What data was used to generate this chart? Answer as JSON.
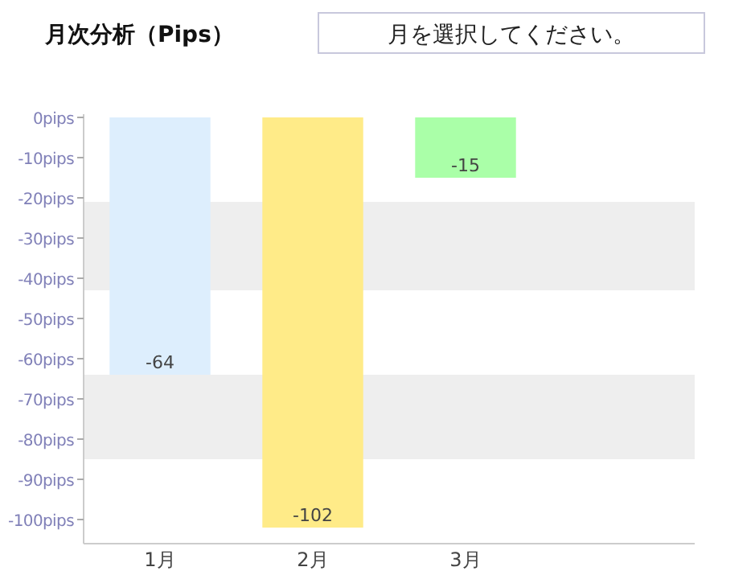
{
  "chart_data": {
    "type": "bar",
    "title": "月次分析（Pips）",
    "annotations": [
      "月を選択してください。"
    ],
    "categories": [
      "1月",
      "2月",
      "3月",
      null
    ],
    "values": [
      -64,
      -102,
      -15,
      null
    ],
    "colors": [
      "#ddeefd",
      "#ffeb88",
      "#aaffa8",
      null
    ],
    "data_labels": true,
    "ylim": [
      -106,
      0
    ],
    "yticks": [
      {
        "value": 0,
        "label": "0pips"
      },
      {
        "value": -10,
        "label": "-10pips"
      },
      {
        "value": -20,
        "label": "-20pips"
      },
      {
        "value": -30,
        "label": "-30pips"
      },
      {
        "value": -40,
        "label": "-40pips"
      },
      {
        "value": -50,
        "label": "-50pips"
      },
      {
        "value": -60,
        "label": "-60pips"
      },
      {
        "value": -70,
        "label": "-70pips"
      },
      {
        "value": -80,
        "label": "-80pips"
      },
      {
        "value": -90,
        "label": "-90pips"
      },
      {
        "value": -100,
        "label": "-100pips"
      }
    ],
    "bands": [
      {
        "axis": "y",
        "from": -21,
        "to": -43,
        "color": "#eeeeee"
      },
      {
        "axis": "y",
        "from": -64,
        "to": -85,
        "color": "#eeeeee"
      }
    ]
  }
}
